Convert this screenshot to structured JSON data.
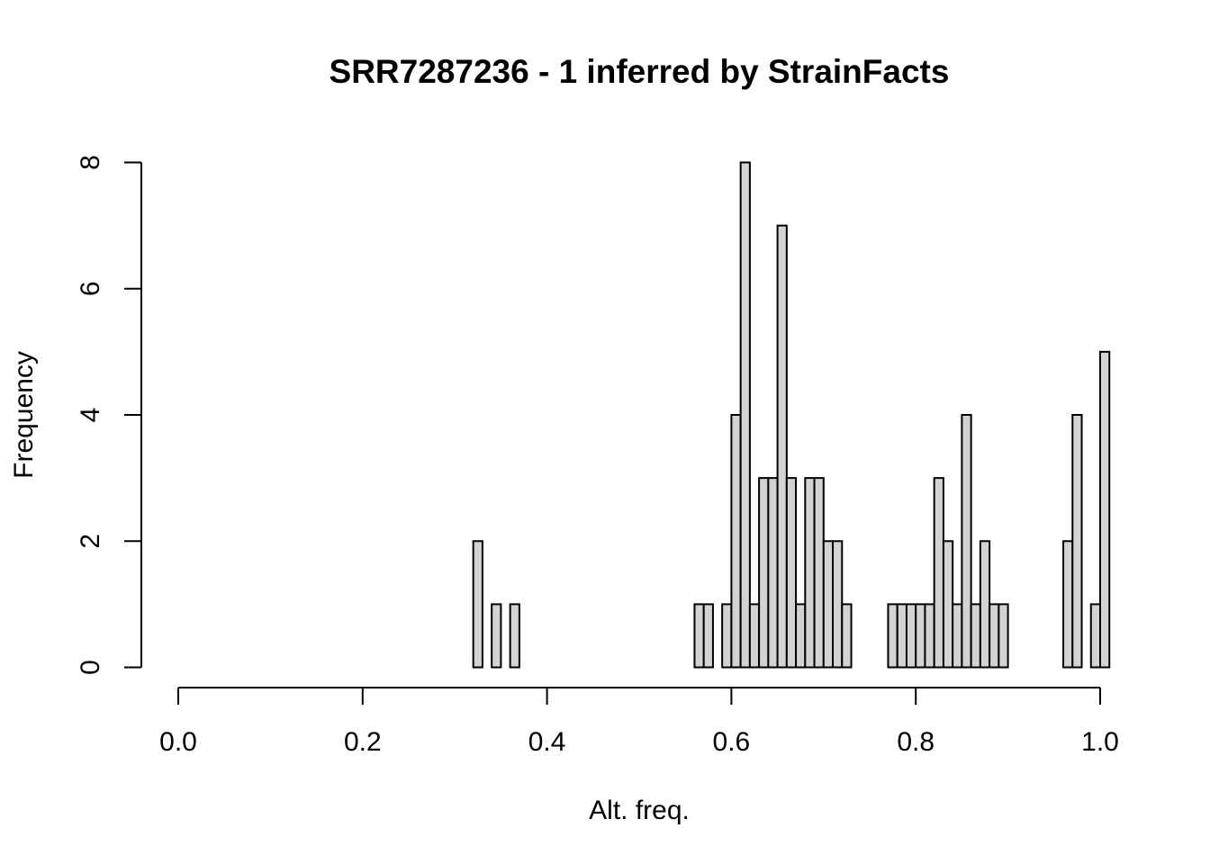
{
  "chart_data": {
    "type": "bar",
    "title": "SRR7287236 - 1 inferred by StrainFacts",
    "xlabel": "Alt. freq.",
    "ylabel": "Frequency",
    "bar_fill": "#d3d3d3",
    "bar_stroke": "#000000",
    "grid": false,
    "xlim": [
      0.0,
      1.0
    ],
    "ylim": [
      0,
      8
    ],
    "x_ticks": [
      "0.0",
      "0.2",
      "0.4",
      "0.6",
      "0.8",
      "1.0"
    ],
    "y_ticks": [
      "0",
      "2",
      "4",
      "6",
      "8"
    ],
    "bins": {
      "start": 0.32,
      "end": 1.0,
      "width": 0.01,
      "counts": [
        2,
        0,
        1,
        0,
        1,
        0,
        0,
        0,
        0,
        0,
        0,
        0,
        0,
        0,
        0,
        0,
        0,
        0,
        0,
        0,
        0,
        0,
        0,
        0,
        1,
        1,
        0,
        1,
        4,
        8,
        1,
        3,
        3,
        7,
        3,
        1,
        3,
        3,
        2,
        2,
        1,
        0,
        0,
        0,
        0,
        1,
        1,
        1,
        1,
        1,
        3,
        2,
        1,
        4,
        1,
        2,
        1,
        1,
        0,
        0,
        0,
        0,
        0,
        0,
        2,
        4,
        0,
        1,
        5
      ]
    }
  }
}
